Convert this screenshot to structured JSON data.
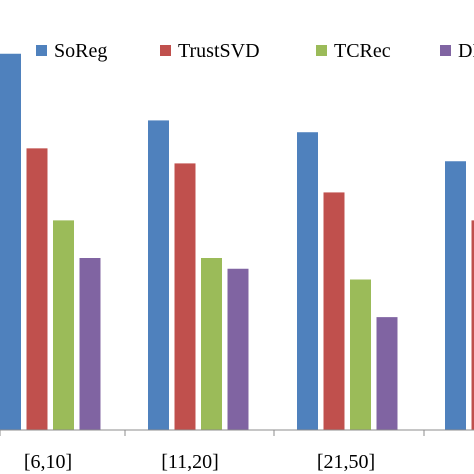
{
  "chart_data": {
    "type": "bar",
    "categories": [
      "[6,10]",
      "[11,20]",
      "[21,50]",
      ""
    ],
    "series": [
      {
        "name": "SoReg",
        "color": "#4F81BD",
        "values": [
          0.9,
          0.838,
          0.827,
          0.8
        ]
      },
      {
        "name": "TrustSVD",
        "color": "#C0504D",
        "values": [
          0.812,
          0.798,
          0.771,
          0.745
        ]
      },
      {
        "name": "TCRec",
        "color": "#9BBB59",
        "values": [
          0.745,
          0.71,
          0.69,
          null
        ]
      },
      {
        "name": "DL",
        "color": "#8064A2",
        "values": [
          0.71,
          0.7,
          0.655,
          null
        ]
      }
    ],
    "ylim": [
      0.55,
      0.95
    ],
    "grid": false,
    "legend_position": "top",
    "title": "",
    "xlabel": "",
    "ylabel": ""
  }
}
